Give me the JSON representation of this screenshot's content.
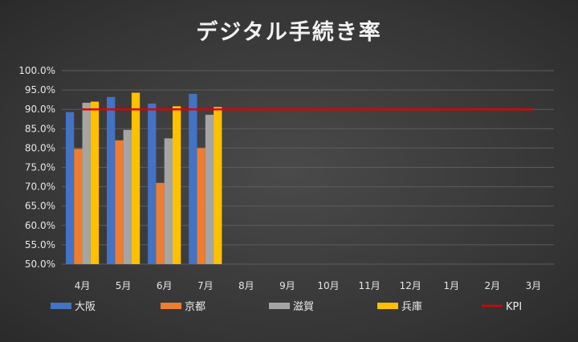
{
  "chart_data": {
    "type": "bar",
    "title": "デジタル手続き率",
    "categories": [
      "4月",
      "5月",
      "6月",
      "7月",
      "8月",
      "9月",
      "10月",
      "11月",
      "12月",
      "1月",
      "2月",
      "3月"
    ],
    "series": [
      {
        "name": "大阪",
        "color": "#4472c4",
        "values": [
          89.3,
          93.2,
          91.5,
          94.0,
          null,
          null,
          null,
          null,
          null,
          null,
          null,
          null
        ]
      },
      {
        "name": "京都",
        "color": "#ed7d31",
        "values": [
          79.8,
          82.0,
          71.0,
          80.0,
          null,
          null,
          null,
          null,
          null,
          null,
          null,
          null
        ]
      },
      {
        "name": "滋賀",
        "color": "#a5a5a5",
        "values": [
          91.7,
          84.7,
          82.5,
          88.6,
          null,
          null,
          null,
          null,
          null,
          null,
          null,
          null
        ]
      },
      {
        "name": "兵庫",
        "color": "#ffc000",
        "values": [
          92.0,
          94.3,
          90.8,
          90.6,
          null,
          null,
          null,
          null,
          null,
          null,
          null,
          null
        ]
      }
    ],
    "kpi": {
      "name": "KPI",
      "color": "#e00000",
      "value": 90.0
    },
    "ylim": [
      50,
      100
    ],
    "yticks": [
      "50.0%",
      "55.0%",
      "60.0%",
      "65.0%",
      "70.0%",
      "75.0%",
      "80.0%",
      "85.0%",
      "90.0%",
      "95.0%",
      "100.0%"
    ],
    "grid": true,
    "legend": "bottom"
  }
}
